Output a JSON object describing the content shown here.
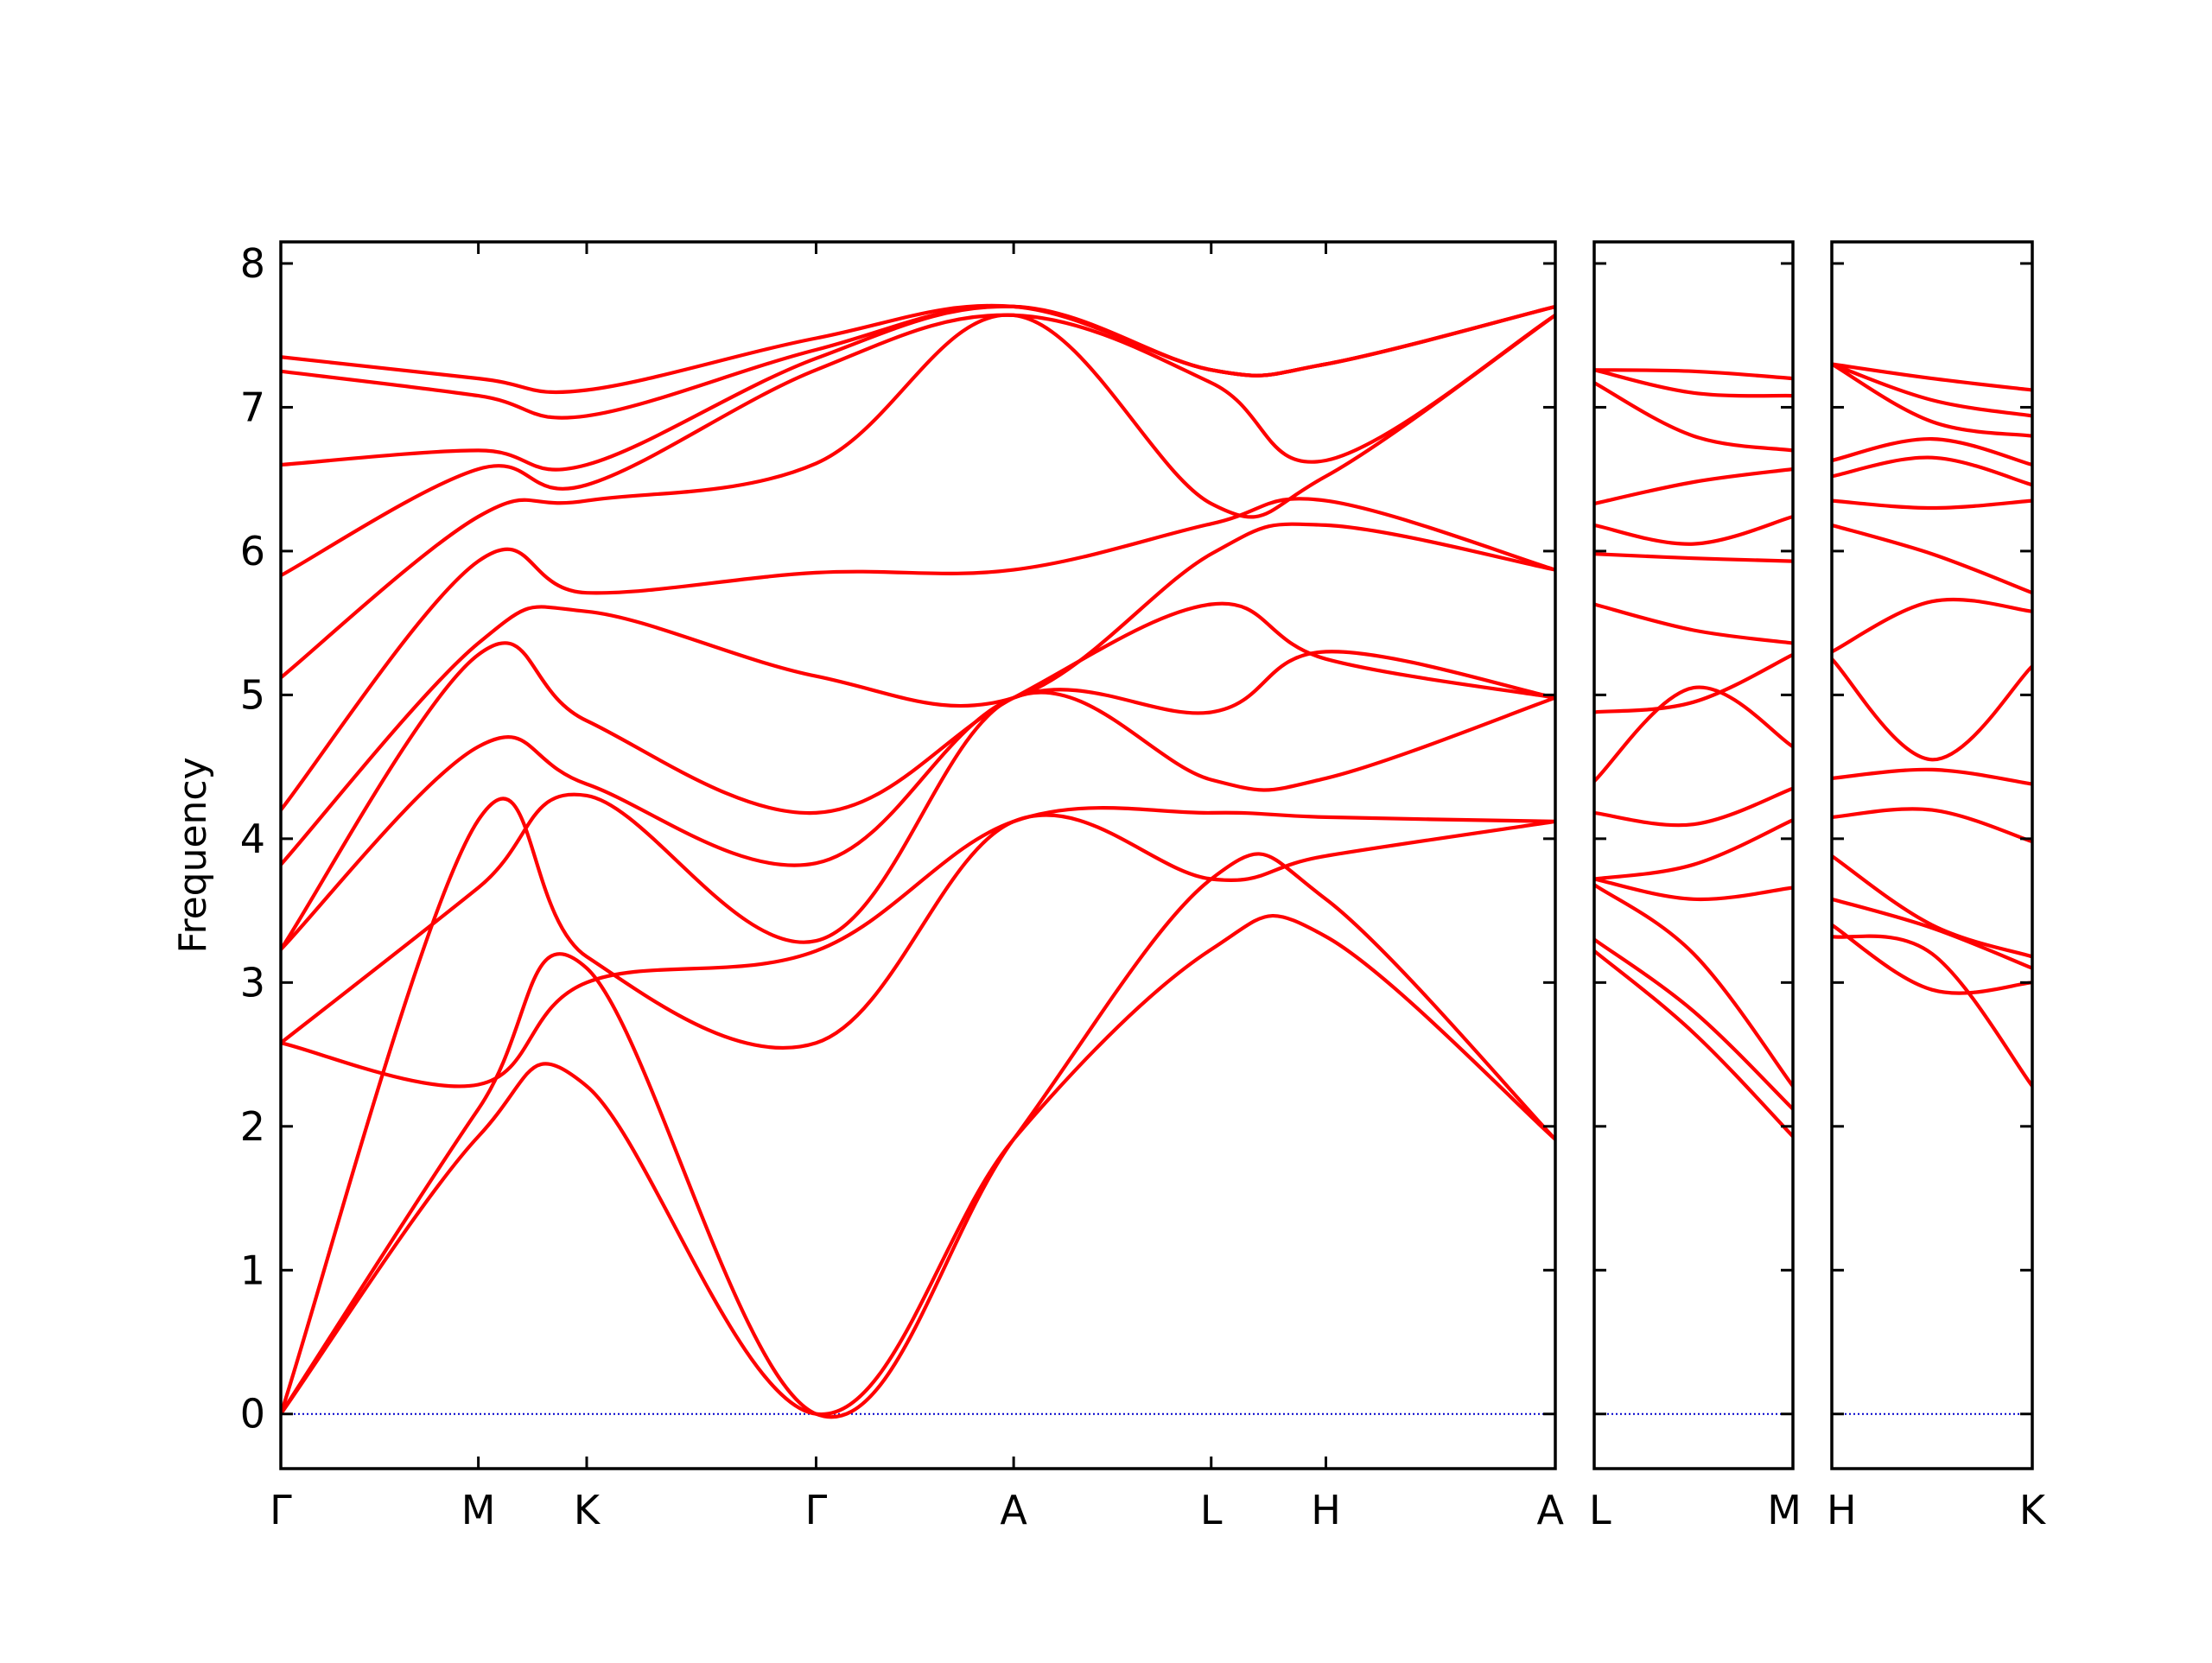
{
  "chart_data": {
    "type": "line",
    "ylabel": "Frequency",
    "ylim": [
      -0.38,
      8.15
    ],
    "yticks": [
      0,
      1,
      2,
      3,
      4,
      5,
      6,
      7,
      8
    ],
    "grid": false,
    "legend": "none",
    "colors": {
      "bands": "#ff0000",
      "zero_line": "#0000cc",
      "axes": "#000000"
    },
    "panels": [
      {
        "id": "main",
        "points": [
          {
            "label": "Γ",
            "x": 0.0
          },
          {
            "label": "M",
            "x": 0.155
          },
          {
            "label": "K",
            "x": 0.24
          },
          {
            "label": "Γ",
            "x": 0.42
          },
          {
            "label": "A",
            "x": 0.575
          },
          {
            "label": "L",
            "x": 0.73
          },
          {
            "label": "H",
            "x": 0.82
          },
          {
            "label": "A",
            "x": 1.0
          }
        ],
        "bands": [
          [
            [
              0,
              0
            ],
            [
              0.155,
              1.93
            ],
            [
              0.24,
              2.28
            ],
            [
              0.42,
              0.0
            ],
            [
              0.575,
              1.91
            ],
            [
              0.73,
              3.23
            ],
            [
              0.82,
              3.32
            ],
            [
              1.0,
              1.91
            ]
          ],
          [
            [
              0,
              0
            ],
            [
              0.155,
              2.12
            ],
            [
              0.24,
              3.1
            ],
            [
              0.42,
              0.0
            ],
            [
              0.575,
              1.91
            ],
            [
              0.73,
              3.72
            ],
            [
              0.82,
              3.58
            ],
            [
              1.0,
              1.91
            ]
          ],
          [
            [
              0,
              0
            ],
            [
              0.155,
              4.13
            ],
            [
              0.24,
              3.18
            ],
            [
              0.42,
              2.58
            ],
            [
              0.575,
              4.12
            ],
            [
              0.73,
              3.72
            ],
            [
              0.82,
              3.88
            ],
            [
              1.0,
              4.12
            ]
          ],
          [
            [
              0,
              2.58
            ],
            [
              0.155,
              2.29
            ],
            [
              0.24,
              3.0
            ],
            [
              0.42,
              3.22
            ],
            [
              0.575,
              4.12
            ],
            [
              0.73,
              4.18
            ],
            [
              0.82,
              4.15
            ],
            [
              1.0,
              4.12
            ]
          ],
          [
            [
              0,
              2.58
            ],
            [
              0.155,
              3.66
            ],
            [
              0.24,
              4.3
            ],
            [
              0.42,
              3.29
            ],
            [
              0.575,
              4.98
            ],
            [
              0.73,
              4.41
            ],
            [
              0.82,
              4.42
            ],
            [
              1.0,
              4.98
            ]
          ],
          [
            [
              0,
              3.23
            ],
            [
              0.155,
              4.64
            ],
            [
              0.24,
              4.38
            ],
            [
              0.42,
              3.83
            ],
            [
              0.575,
              4.98
            ],
            [
              0.73,
              4.88
            ],
            [
              0.82,
              5.3
            ],
            [
              1.0,
              4.98
            ]
          ],
          [
            [
              0,
              3.23
            ],
            [
              0.155,
              5.28
            ],
            [
              0.24,
              4.82
            ],
            [
              0.42,
              4.18
            ],
            [
              0.575,
              4.98
            ],
            [
              0.73,
              5.63
            ],
            [
              0.82,
              5.25
            ],
            [
              1.0,
              4.98
            ]
          ],
          [
            [
              0,
              3.82
            ],
            [
              0.155,
              5.36
            ],
            [
              0.24,
              5.58
            ],
            [
              0.42,
              5.13
            ],
            [
              0.575,
              4.98
            ],
            [
              0.73,
              5.98
            ],
            [
              0.82,
              6.18
            ],
            [
              1.0,
              5.87
            ]
          ],
          [
            [
              0,
              4.2
            ],
            [
              0.155,
              5.93
            ],
            [
              0.24,
              5.71
            ],
            [
              0.42,
              5.85
            ],
            [
              0.575,
              5.87
            ],
            [
              0.73,
              6.19
            ],
            [
              0.82,
              6.35
            ],
            [
              1.0,
              5.87
            ]
          ],
          [
            [
              0,
              5.12
            ],
            [
              0.155,
              6.24
            ],
            [
              0.24,
              6.35
            ],
            [
              0.42,
              6.61
            ],
            [
              0.575,
              7.64
            ],
            [
              0.73,
              6.33
            ],
            [
              0.82,
              6.52
            ],
            [
              1.0,
              7.64
            ]
          ],
          [
            [
              0,
              5.83
            ],
            [
              0.155,
              6.57
            ],
            [
              0.24,
              6.46
            ],
            [
              0.42,
              7.26
            ],
            [
              0.575,
              7.64
            ],
            [
              0.73,
              7.17
            ],
            [
              0.82,
              6.63
            ],
            [
              1.0,
              7.64
            ]
          ],
          [
            [
              0,
              6.6
            ],
            [
              0.155,
              6.7
            ],
            [
              0.24,
              6.6
            ],
            [
              0.42,
              7.34
            ],
            [
              0.575,
              7.7
            ],
            [
              0.73,
              7.26
            ],
            [
              0.82,
              7.3
            ],
            [
              1.0,
              7.7
            ]
          ],
          [
            [
              0,
              7.25
            ],
            [
              0.155,
              7.08
            ],
            [
              0.24,
              6.94
            ],
            [
              0.42,
              7.4
            ],
            [
              0.575,
              7.7
            ],
            [
              0.73,
              7.26
            ],
            [
              0.82,
              7.3
            ],
            [
              1.0,
              7.7
            ]
          ],
          [
            [
              0,
              7.35
            ],
            [
              0.155,
              7.2
            ],
            [
              0.24,
              7.12
            ],
            [
              0.42,
              7.48
            ],
            [
              0.575,
              7.7
            ],
            [
              0.73,
              7.26
            ],
            [
              0.82,
              7.3
            ],
            [
              1.0,
              7.7
            ]
          ]
        ]
      },
      {
        "id": "L-M",
        "points": [
          {
            "label": "L",
            "x": 0.0
          },
          {
            "label": "M",
            "x": 1.0
          }
        ],
        "bands": [
          [
            [
              0,
              3.22
            ],
            [
              0.5,
              2.65
            ],
            [
              1.0,
              1.93
            ]
          ],
          [
            [
              0,
              3.3
            ],
            [
              0.5,
              2.8
            ],
            [
              1.0,
              2.12
            ]
          ],
          [
            [
              0,
              3.68
            ],
            [
              0.5,
              3.2
            ],
            [
              1.0,
              2.28
            ]
          ],
          [
            [
              0,
              3.72
            ],
            [
              0.5,
              3.58
            ],
            [
              1.0,
              3.66
            ]
          ],
          [
            [
              0,
              3.72
            ],
            [
              0.5,
              3.82
            ],
            [
              1.0,
              4.13
            ]
          ],
          [
            [
              0,
              4.18
            ],
            [
              0.5,
              4.1
            ],
            [
              1.0,
              4.35
            ]
          ],
          [
            [
              0,
              4.4
            ],
            [
              0.5,
              5.05
            ],
            [
              1.0,
              4.64
            ]
          ],
          [
            [
              0,
              4.88
            ],
            [
              0.5,
              4.95
            ],
            [
              1.0,
              5.28
            ]
          ],
          [
            [
              0,
              5.63
            ],
            [
              0.5,
              5.45
            ],
            [
              1.0,
              5.36
            ]
          ],
          [
            [
              0,
              5.98
            ],
            [
              0.5,
              5.95
            ],
            [
              1.0,
              5.93
            ]
          ],
          [
            [
              0,
              6.18
            ],
            [
              0.5,
              6.05
            ],
            [
              1.0,
              6.24
            ]
          ],
          [
            [
              0,
              6.33
            ],
            [
              0.5,
              6.48
            ],
            [
              1.0,
              6.57
            ]
          ],
          [
            [
              0,
              7.17
            ],
            [
              0.5,
              6.8
            ],
            [
              1.0,
              6.7
            ]
          ],
          [
            [
              0,
              7.26
            ],
            [
              0.5,
              7.1
            ],
            [
              1.0,
              7.08
            ]
          ],
          [
            [
              0,
              7.26
            ],
            [
              0.5,
              7.25
            ],
            [
              1.0,
              7.2
            ]
          ]
        ]
      },
      {
        "id": "H-K",
        "points": [
          {
            "label": "H",
            "x": 0.0
          },
          {
            "label": "K",
            "x": 1.0
          }
        ],
        "bands": [
          [
            [
              0,
              3.32
            ],
            [
              0.5,
              3.2
            ],
            [
              1.0,
              2.28
            ]
          ],
          [
            [
              0,
              3.4
            ],
            [
              0.5,
              2.95
            ],
            [
              1.0,
              3.0
            ]
          ],
          [
            [
              0,
              3.58
            ],
            [
              0.5,
              3.38
            ],
            [
              1.0,
              3.1
            ]
          ],
          [
            [
              0,
              3.88
            ],
            [
              0.5,
              3.4
            ],
            [
              1.0,
              3.18
            ]
          ],
          [
            [
              0,
              4.15
            ],
            [
              0.5,
              4.2
            ],
            [
              1.0,
              3.98
            ]
          ],
          [
            [
              0,
              4.42
            ],
            [
              0.5,
              4.48
            ],
            [
              1.0,
              4.38
            ]
          ],
          [
            [
              0,
              5.25
            ],
            [
              0.5,
              4.55
            ],
            [
              1.0,
              5.2
            ]
          ],
          [
            [
              0,
              5.3
            ],
            [
              0.5,
              5.65
            ],
            [
              1.0,
              5.58
            ]
          ],
          [
            [
              0,
              6.18
            ],
            [
              0.5,
              5.98
            ],
            [
              1.0,
              5.71
            ]
          ],
          [
            [
              0,
              6.35
            ],
            [
              0.5,
              6.3
            ],
            [
              1.0,
              6.35
            ]
          ],
          [
            [
              0,
              6.52
            ],
            [
              0.5,
              6.65
            ],
            [
              1.0,
              6.46
            ]
          ],
          [
            [
              0,
              6.63
            ],
            [
              0.5,
              6.78
            ],
            [
              1.0,
              6.6
            ]
          ],
          [
            [
              0,
              7.3
            ],
            [
              0.5,
              6.9
            ],
            [
              1.0,
              6.8
            ]
          ],
          [
            [
              0,
              7.3
            ],
            [
              0.5,
              7.05
            ],
            [
              1.0,
              6.94
            ]
          ],
          [
            [
              0,
              7.3
            ],
            [
              0.5,
              7.2
            ],
            [
              1.0,
              7.12
            ]
          ]
        ]
      }
    ]
  }
}
